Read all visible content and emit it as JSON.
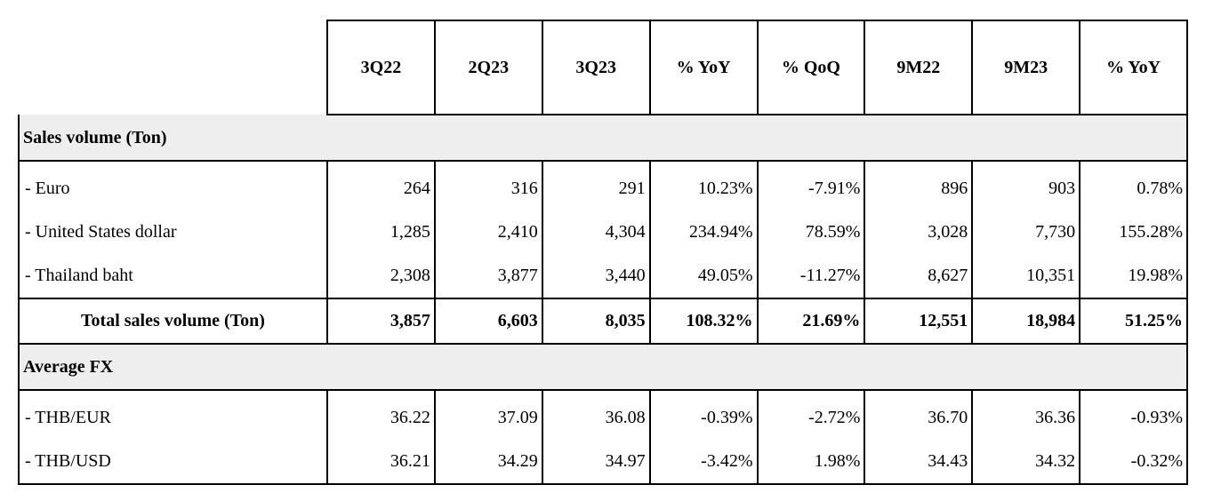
{
  "table": {
    "headers": [
      "3Q22",
      "2Q23",
      "3Q23",
      "% YoY",
      "% QoQ",
      "9M22",
      "9M23",
      "% YoY"
    ],
    "sections": [
      {
        "title": "Sales volume (Ton)",
        "rows": [
          {
            "label": "- Euro",
            "values": [
              "264",
              "316",
              "291",
              "10.23%",
              "-7.91%",
              "896",
              "903",
              "0.78%"
            ]
          },
          {
            "label": "- United States dollar",
            "values": [
              "1,285",
              "2,410",
              "4,304",
              "234.94%",
              "78.59%",
              "3,028",
              "7,730",
              "155.28%"
            ]
          },
          {
            "label": "- Thailand baht",
            "values": [
              "2,308",
              "3,877",
              "3,440",
              "49.05%",
              "-11.27%",
              "8,627",
              "10,351",
              "19.98%"
            ]
          }
        ],
        "total": {
          "label": "Total sales volume (Ton)",
          "values": [
            "3,857",
            "6,603",
            "8,035",
            "108.32%",
            "21.69%",
            "12,551",
            "18,984",
            "51.25%"
          ]
        }
      },
      {
        "title": "Average FX",
        "rows": [
          {
            "label": "- THB/EUR",
            "values": [
              "36.22",
              "37.09",
              "36.08",
              "-0.39%",
              "-2.72%",
              "36.70",
              "36.36",
              "-0.93%"
            ]
          },
          {
            "label": "- THB/USD",
            "values": [
              "36.21",
              "34.29",
              "34.97",
              "-3.42%",
              "1.98%",
              "34.43",
              "34.32",
              "-0.32%"
            ]
          }
        ]
      }
    ]
  }
}
